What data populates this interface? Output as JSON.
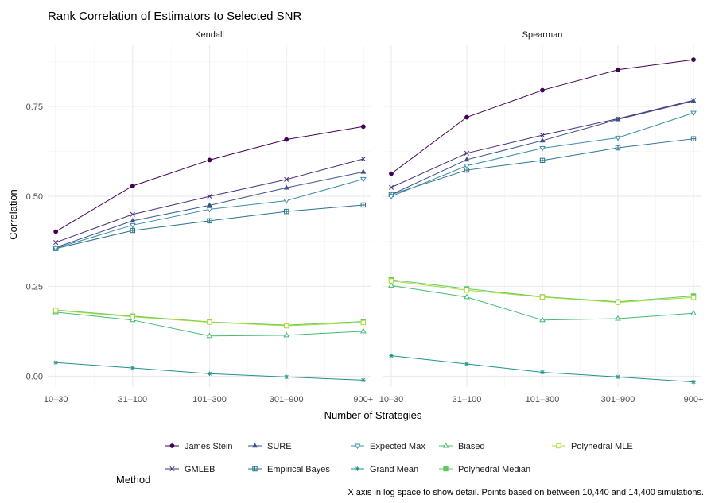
{
  "chart_data": {
    "type": "line",
    "title": "Rank Correlation of Estimators to Selected SNR",
    "xlabel": "Number of Strategies",
    "ylabel": "Correlation",
    "categories": [
      "10–30",
      "31–100",
      "101–300",
      "301–900",
      "900+"
    ],
    "y_ticks": [
      "0.00",
      "0.25",
      "0.50",
      "0.75"
    ],
    "ylim": [
      -0.03,
      0.92
    ],
    "grid": true,
    "legend_title": "Method",
    "legend_position": "bottom",
    "caption": "X axis in log space to show detail. Points based on between 10,440 and 14,400 simulations.",
    "panels": [
      {
        "name": "Kendall",
        "series": [
          {
            "name": "James Stein",
            "values": [
              0.402,
              0.529,
              0.601,
              0.658,
              0.694
            ]
          },
          {
            "name": "GMLEB",
            "values": [
              0.372,
              0.45,
              0.5,
              0.547,
              0.604
            ]
          },
          {
            "name": "SURE",
            "values": [
              0.358,
              0.432,
              0.475,
              0.524,
              0.568
            ]
          },
          {
            "name": "Empirical Bayes",
            "values": [
              0.355,
              0.405,
              0.432,
              0.458,
              0.476
            ]
          },
          {
            "name": "Expected Max",
            "values": [
              0.356,
              0.42,
              0.464,
              0.488,
              0.548
            ]
          },
          {
            "name": "Grand Mean",
            "values": [
              0.038,
              0.023,
              0.007,
              -0.002,
              -0.011
            ]
          },
          {
            "name": "Biased",
            "values": [
              0.178,
              0.156,
              0.112,
              0.114,
              0.125
            ]
          },
          {
            "name": "Polyhedral Median",
            "values": [
              0.184,
              0.167,
              0.151,
              0.142,
              0.152
            ]
          },
          {
            "name": "Polyhedral MLE",
            "values": [
              0.183,
              0.165,
              0.15,
              0.14,
              0.149
            ]
          }
        ]
      },
      {
        "name": "Spearman",
        "series": [
          {
            "name": "James Stein",
            "values": [
              0.563,
              0.72,
              0.795,
              0.852,
              0.88
            ]
          },
          {
            "name": "GMLEB",
            "values": [
              0.525,
              0.62,
              0.67,
              0.716,
              0.767
            ]
          },
          {
            "name": "SURE",
            "values": [
              0.505,
              0.602,
              0.655,
              0.714,
              0.765
            ]
          },
          {
            "name": "Empirical Bayes",
            "values": [
              0.505,
              0.573,
              0.6,
              0.635,
              0.66
            ]
          },
          {
            "name": "Expected Max",
            "values": [
              0.5,
              0.585,
              0.634,
              0.663,
              0.732
            ]
          },
          {
            "name": "Grand Mean",
            "values": [
              0.057,
              0.034,
              0.011,
              -0.002,
              -0.016
            ]
          },
          {
            "name": "Biased",
            "values": [
              0.252,
              0.22,
              0.156,
              0.16,
              0.175
            ]
          },
          {
            "name": "Polyhedral Median",
            "values": [
              0.268,
              0.243,
              0.221,
              0.207,
              0.223
            ]
          },
          {
            "name": "Polyhedral MLE",
            "values": [
              0.265,
              0.239,
              0.22,
              0.205,
              0.219
            ]
          }
        ]
      }
    ],
    "series_styles": [
      {
        "name": "James Stein",
        "color": "#440154",
        "marker": "circle-filled"
      },
      {
        "name": "GMLEB",
        "color": "#472d7b",
        "marker": "x"
      },
      {
        "name": "SURE",
        "color": "#3b528b",
        "marker": "triangle-filled"
      },
      {
        "name": "Empirical Bayes",
        "color": "#2c728e",
        "marker": "square-cross"
      },
      {
        "name": "Expected Max",
        "color": "#3b8ea5",
        "marker": "triangle-down-open"
      },
      {
        "name": "Grand Mean",
        "color": "#21918c",
        "marker": "asterisk"
      },
      {
        "name": "Biased",
        "color": "#3fbc73",
        "marker": "triangle-open"
      },
      {
        "name": "Polyhedral Median",
        "color": "#5ec962",
        "marker": "square-filled"
      },
      {
        "name": "Polyhedral MLE",
        "color": "#a8db34",
        "marker": "square-open"
      }
    ]
  }
}
